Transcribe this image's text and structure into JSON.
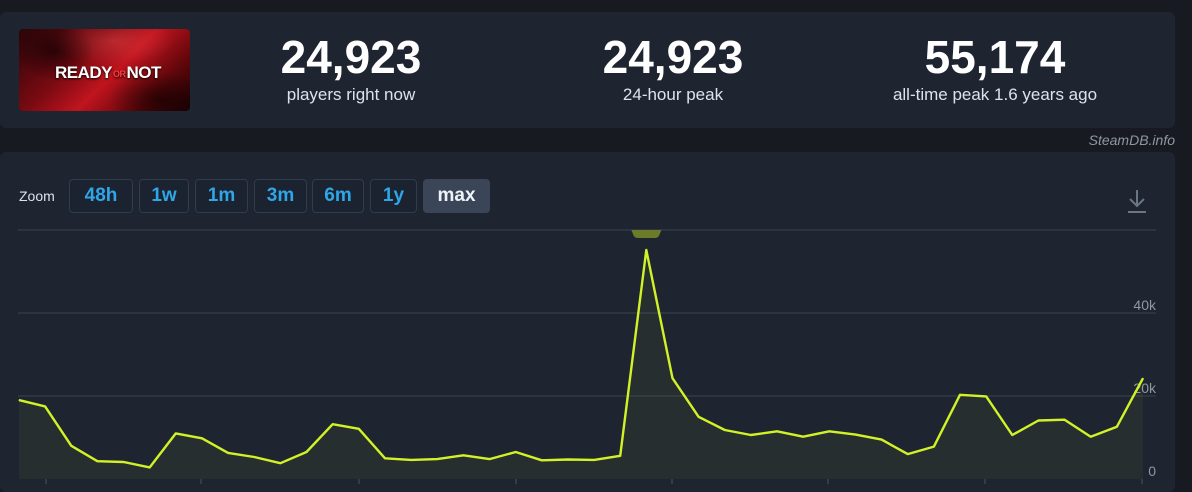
{
  "game": {
    "logo_text_1": "READY",
    "logo_text_2": "OR",
    "logo_text_3": "NOT"
  },
  "stats": {
    "current": {
      "value": "24,923",
      "label": "players right now"
    },
    "peak24": {
      "value": "24,923",
      "label": "24-hour peak"
    },
    "alltime": {
      "value": "55,174",
      "label": "all-time peak 1.6 years ago"
    }
  },
  "credit": "SteamDB.info",
  "zoom": {
    "label": "Zoom",
    "buttons": [
      "48h",
      "1w",
      "1m",
      "3m",
      "6m",
      "1y",
      "max"
    ],
    "active": "max"
  },
  "icons": {
    "download": "download-icon"
  },
  "colors": {
    "line": "#d2f228",
    "accent": "#2ea6e8",
    "grid": "#3a4350",
    "peak_marker": "#6b7b2a"
  },
  "chart_data": {
    "type": "line",
    "ylim": [
      0,
      60000
    ],
    "y_ticks": [
      0,
      20000,
      40000
    ],
    "y_tick_labels": [
      "0",
      "20k",
      "40k"
    ],
    "grid": true,
    "series": [
      {
        "values": [
          19000,
          17500,
          8000,
          4300,
          4100,
          2800,
          11000,
          9800,
          6300,
          5300,
          3800,
          6500,
          13200,
          12100,
          5000,
          4600,
          4800,
          5700,
          4800,
          6500,
          4500,
          4700,
          4600,
          5600,
          55174,
          24300,
          15000,
          11800,
          10600,
          11500,
          10200,
          11500,
          10700,
          9500,
          6000,
          7800,
          20300,
          19900,
          10600,
          14100,
          14300,
          10200,
          12600,
          24300
        ]
      }
    ],
    "peak_index": 24
  }
}
